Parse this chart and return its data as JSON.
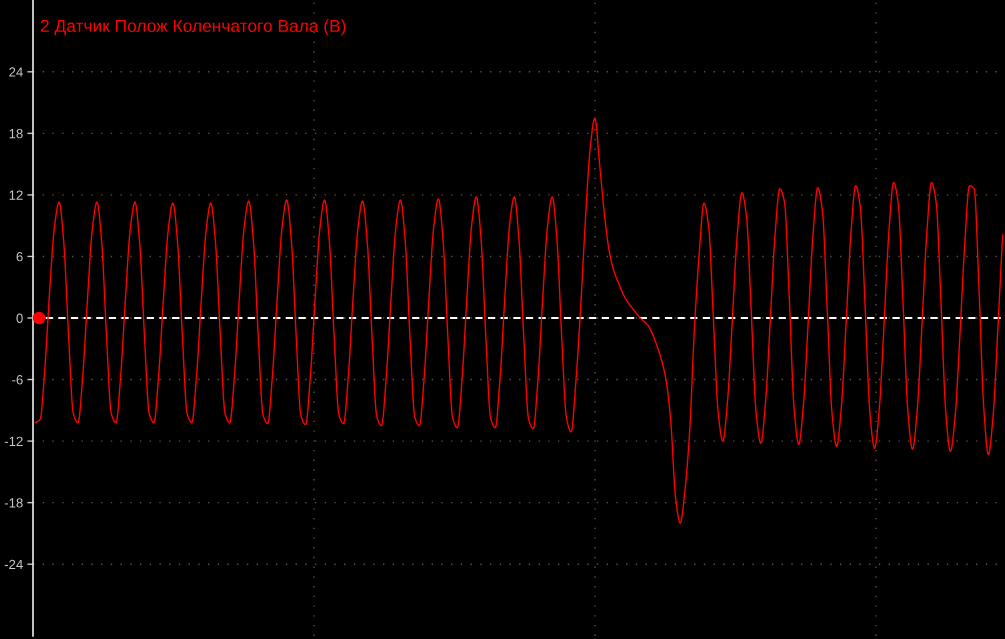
{
  "chart_data": {
    "type": "line",
    "title": "2 Датчик Полож Коленчатого Вала (В)",
    "categories": [
      null,
      null,
      null,
      null,
      null,
      null,
      null,
      null,
      null,
      null,
      null,
      null,
      null,
      null,
      null,
      null,
      null,
      null,
      null,
      null,
      null,
      null,
      null,
      null,
      null,
      null,
      null,
      null,
      null,
      null,
      null,
      null,
      null,
      null,
      null,
      null,
      null,
      null,
      null,
      null,
      null,
      null,
      null,
      null,
      null,
      null,
      null,
      null,
      null,
      null,
      null,
      null,
      null,
      null,
      null,
      null,
      null,
      null,
      null,
      null,
      null,
      null,
      null,
      null,
      null,
      null,
      null,
      null,
      null,
      null,
      null,
      null,
      null,
      null,
      null,
      null,
      null,
      null,
      null,
      null,
      null,
      null,
      null,
      null,
      null,
      null,
      null,
      null,
      null,
      null,
      null,
      null,
      null,
      null,
      null,
      null,
      null,
      null,
      null,
      null,
      null,
      null,
      null,
      null,
      null,
      null,
      null,
      null,
      null,
      null,
      null,
      null,
      null,
      null,
      null,
      null,
      null,
      null,
      null,
      null,
      null,
      null,
      null,
      null,
      null,
      null,
      null,
      null,
      null,
      null,
      null,
      null,
      null,
      null,
      null,
      null,
      null,
      null,
      null,
      null,
      null,
      null,
      null,
      null,
      null,
      null,
      null,
      null,
      null,
      null,
      null,
      null,
      null,
      null,
      null,
      null,
      null,
      null,
      null,
      null,
      null,
      null,
      null,
      null,
      null,
      null,
      null,
      null,
      null,
      null,
      null,
      null,
      null,
      null,
      null,
      null,
      null,
      null,
      null,
      null,
      null,
      null,
      null,
      null,
      null,
      null,
      null,
      null,
      null,
      null,
      null,
      null,
      null,
      null,
      null,
      null,
      null,
      null,
      null,
      null,
      null,
      null,
      null,
      null,
      null
    ],
    "series": [
      {
        "color": "#ff0000",
        "values": [
          -10.2,
          -9.9,
          -4.9,
          2.5,
          8.8,
          11.3,
          7.3,
          -1.7,
          -9.3,
          -10.2,
          -5.6,
          1.9,
          8.6,
          11.3,
          7.3,
          -1.7,
          -9.3,
          -10.2,
          -5.6,
          1.9,
          8.6,
          11.3,
          7.3,
          -1.7,
          -9.3,
          -10.2,
          -5.6,
          1.8,
          8.5,
          11.2,
          7.3,
          -1.7,
          -9.3,
          -10.2,
          -5.6,
          1.8,
          8.5,
          11.2,
          7.3,
          -1.7,
          -9.3,
          -10.2,
          -5.6,
          1.9,
          8.7,
          11.4,
          7.4,
          -1.7,
          -9.4,
          -10.3,
          -5.6,
          1.9,
          8.7,
          11.5,
          7.5,
          -1.7,
          -9.5,
          -10.4,
          -5.7,
          1.9,
          8.7,
          11.5,
          7.5,
          -1.7,
          -9.4,
          -10.3,
          -5.7,
          1.9,
          8.6,
          11.4,
          7.4,
          -1.8,
          -9.6,
          -10.5,
          -5.8,
          1.8,
          8.7,
          11.5,
          7.5,
          -1.8,
          -9.6,
          -10.5,
          -5.8,
          1.9,
          8.8,
          11.6,
          7.5,
          -1.9,
          -9.7,
          -10.7,
          -5.9,
          1.9,
          9.0,
          11.8,
          7.7,
          -1.8,
          -9.7,
          -10.7,
          -5.9,
          1.9,
          9.0,
          11.8,
          7.6,
          -1.8,
          -9.8,
          -10.8,
          -6.0,
          1.9,
          8.9,
          11.8,
          7.7,
          -1.8,
          -9.7,
          -11.1,
          -6.2,
          1.0,
          9.5,
          16.5,
          19.5,
          15.0,
          10.2,
          6.6,
          4.6,
          3.4,
          2.3,
          1.5,
          0.9,
          0.3,
          -0.2,
          -0.6,
          -1.4,
          -2.6,
          -4.0,
          -6.0,
          -10.0,
          -17.4,
          -20.0,
          -16.8,
          -11.0,
          -1.0,
          6.2,
          11.2,
          8.9,
          -0.1,
          -9.2,
          -12.0,
          -8.0,
          -0.1,
          7.9,
          12.2,
          9.8,
          0.4,
          -9.2,
          -12.2,
          -8.2,
          -0.2,
          8.1,
          12.6,
          11.3,
          2.0,
          -8.7,
          -12.3,
          -8.4,
          -0.3,
          8.1,
          12.7,
          10.4,
          0.9,
          -9.2,
          -12.5,
          -8.6,
          -0.4,
          8.2,
          12.9,
          10.7,
          1.1,
          -9.2,
          -12.7,
          -8.8,
          -0.5,
          8.3,
          13.2,
          11.1,
          1.4,
          -9.0,
          -12.8,
          -8.9,
          -0.6,
          8.2,
          13.2,
          11.2,
          1.5,
          -9.1,
          -13.0,
          -9.5,
          -1.6,
          7.1,
          12.9,
          12.6,
          3.1,
          -8.6,
          -13.3,
          -9.5,
          -1.0,
          8.1
        ]
      }
    ],
    "ylim": [
      -31,
      31
    ],
    "yticks": [
      -24,
      -18,
      -12,
      -6,
      0,
      6,
      12,
      18,
      24
    ],
    "grid": true,
    "tick_labels": "y",
    "marker": "none",
    "line_style": "solid",
    "ref_lines": [
      {
        "axis": "y",
        "value": 0,
        "color": "#ffffff",
        "line_style": "dashed"
      }
    ]
  }
}
